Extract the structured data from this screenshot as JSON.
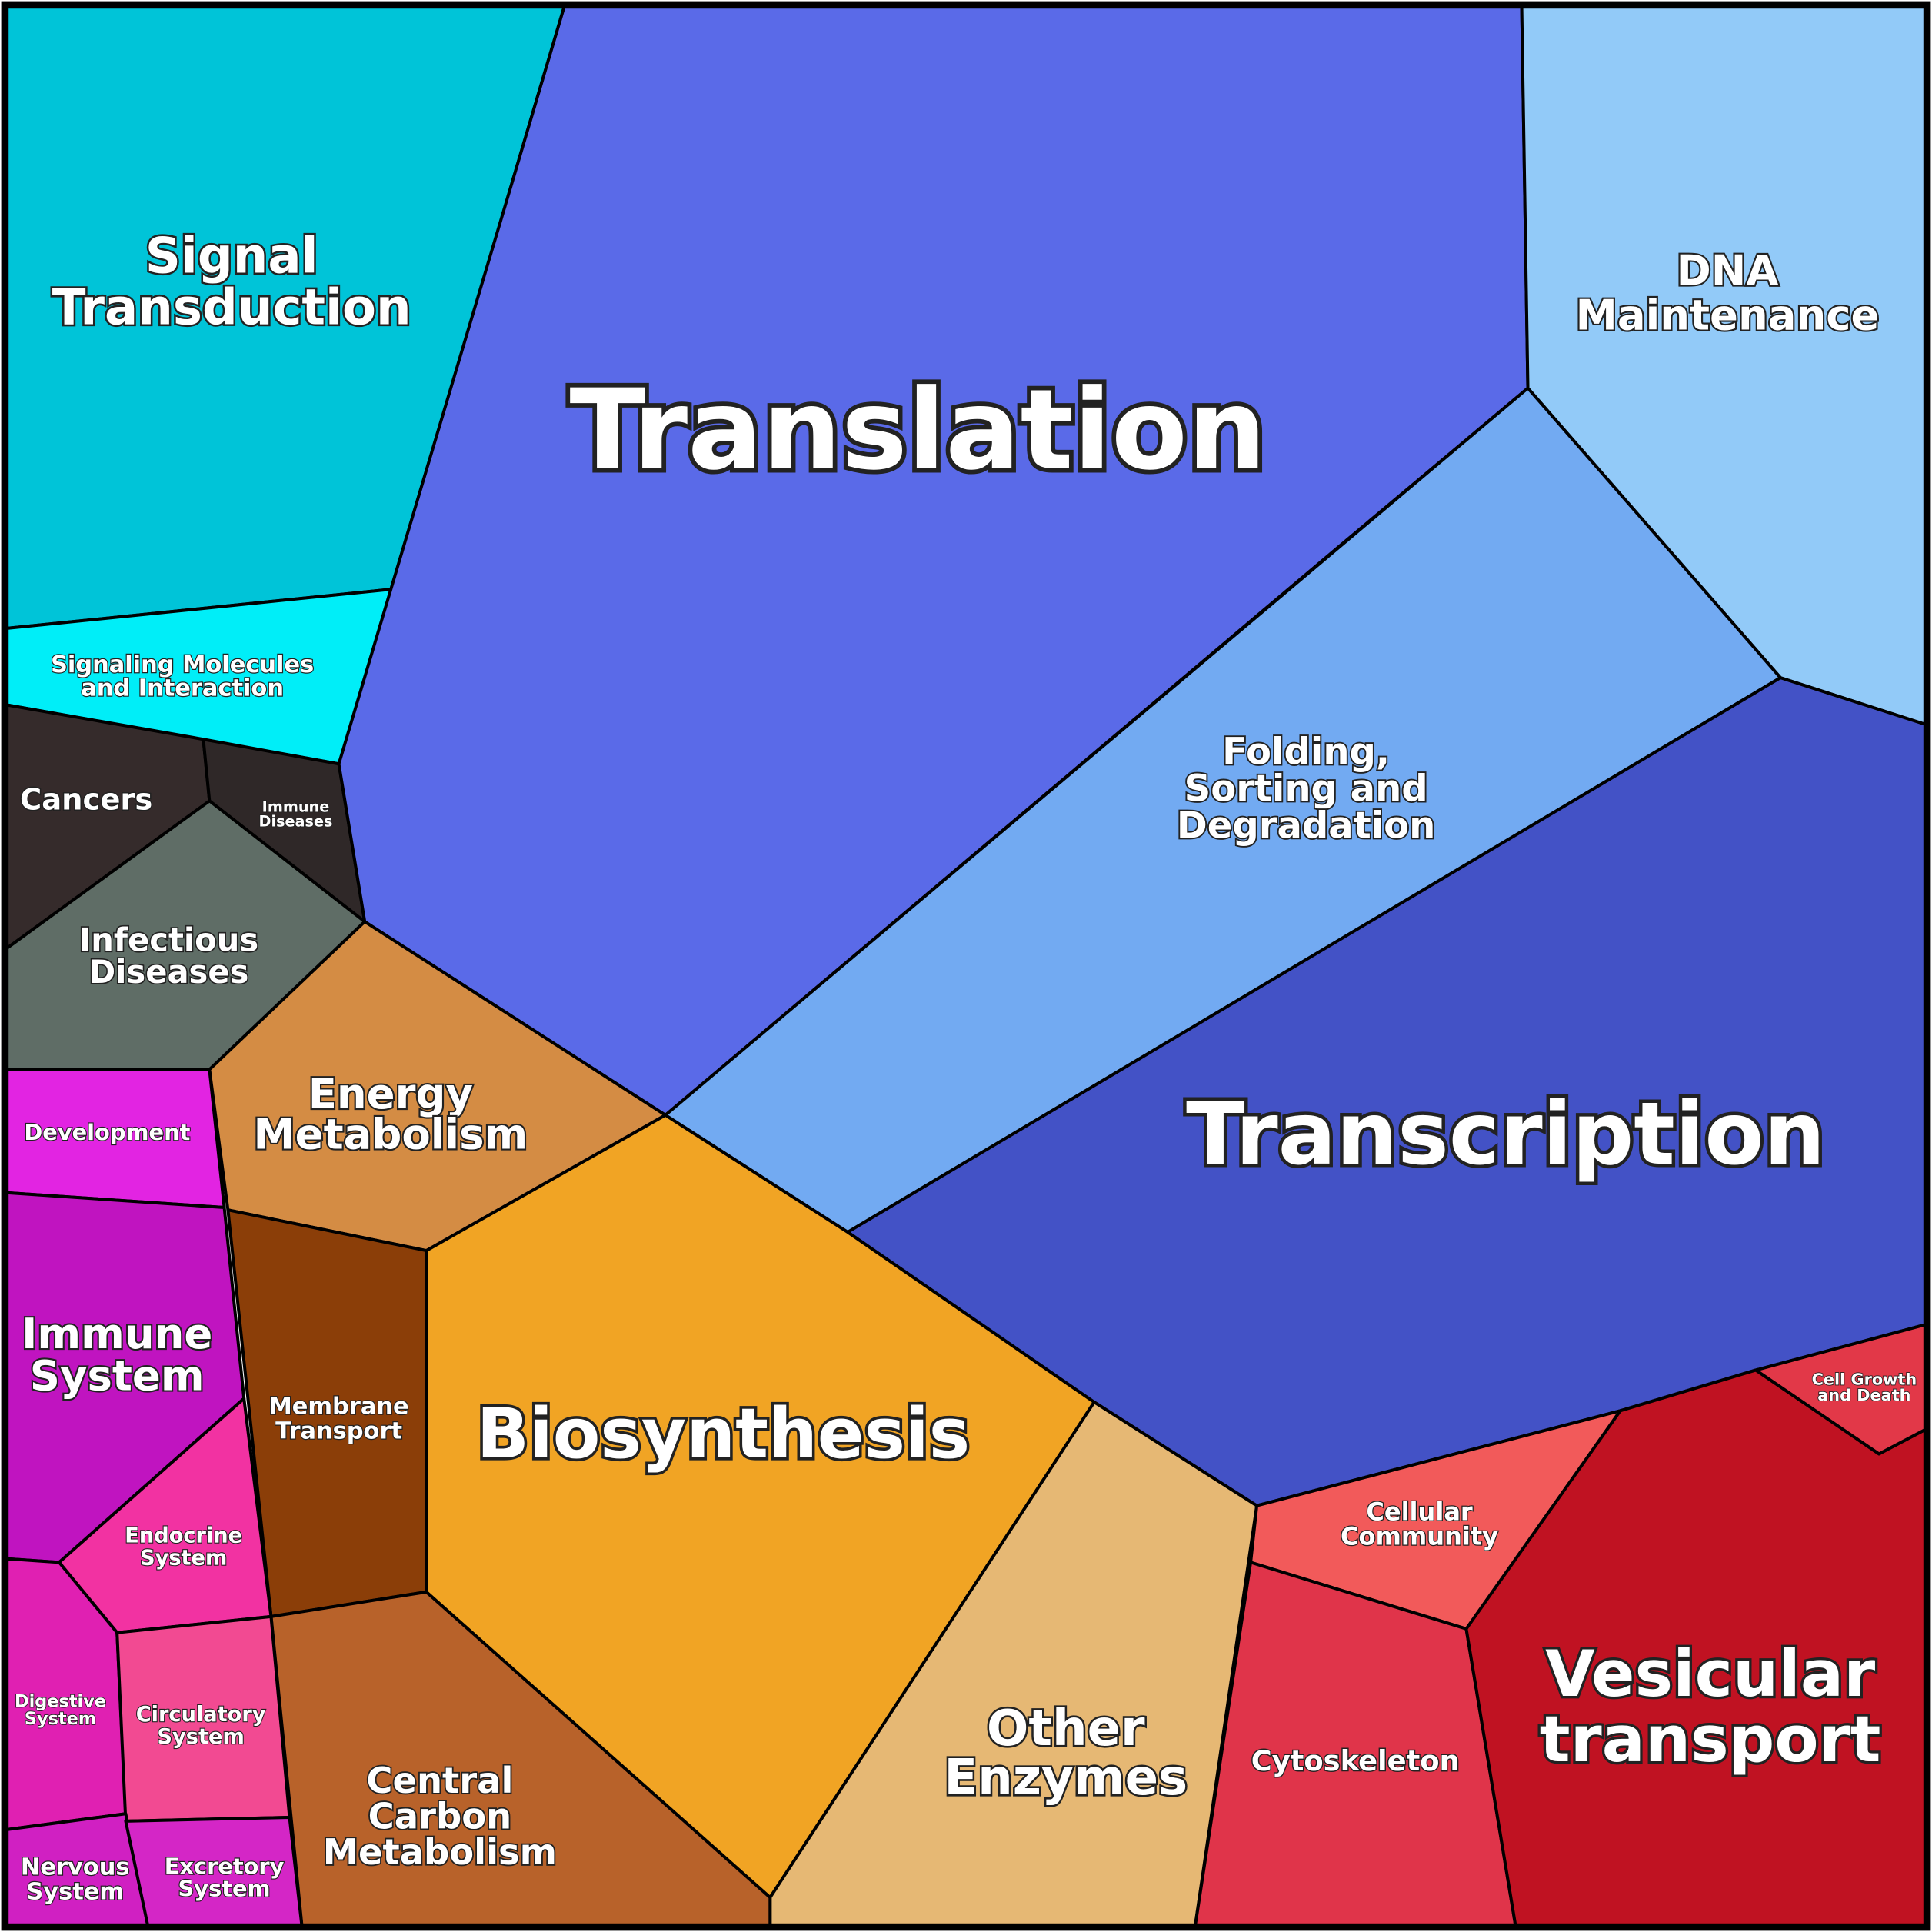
{
  "regions": [
    {
      "lines": [
        "Signal",
        "Transduction"
      ]
    },
    {
      "lines": [
        "Signaling Molecules",
        "and Interaction"
      ]
    },
    {
      "lines": [
        "Cancers"
      ]
    },
    {
      "lines": [
        "Immune",
        "Diseases"
      ]
    },
    {
      "lines": [
        "Infectious",
        "Diseases"
      ]
    },
    {
      "lines": [
        "Translation"
      ]
    },
    {
      "lines": [
        "DNA",
        "Maintenance"
      ]
    },
    {
      "lines": [
        "Folding,",
        "Sorting and",
        "Degradation"
      ]
    },
    {
      "lines": [
        "Transcription"
      ]
    },
    {
      "lines": [
        "Energy",
        "Metabolism"
      ]
    },
    {
      "lines": [
        "Biosynthesis"
      ]
    },
    {
      "lines": [
        "Other",
        "Enzymes"
      ]
    },
    {
      "lines": [
        "Membrane",
        "Transport"
      ]
    },
    {
      "lines": [
        "Central",
        "Carbon",
        "Metabolism"
      ]
    },
    {
      "lines": [
        "Cellular",
        "Community"
      ]
    },
    {
      "lines": [
        "Cytoskeleton"
      ]
    },
    {
      "lines": [
        "Vesicular",
        "transport"
      ]
    },
    {
      "lines": [
        "Cell Growth",
        "and Death"
      ]
    },
    {
      "lines": [
        "Development"
      ]
    },
    {
      "lines": [
        "Immune",
        "System"
      ]
    },
    {
      "lines": [
        "Endocrine",
        "System"
      ]
    },
    {
      "lines": [
        "Digestive",
        "System"
      ]
    },
    {
      "lines": [
        "Circulatory",
        "System"
      ]
    },
    {
      "lines": [
        "Nervous",
        "System"
      ]
    },
    {
      "lines": [
        "Excretory",
        "System"
      ]
    }
  ]
}
